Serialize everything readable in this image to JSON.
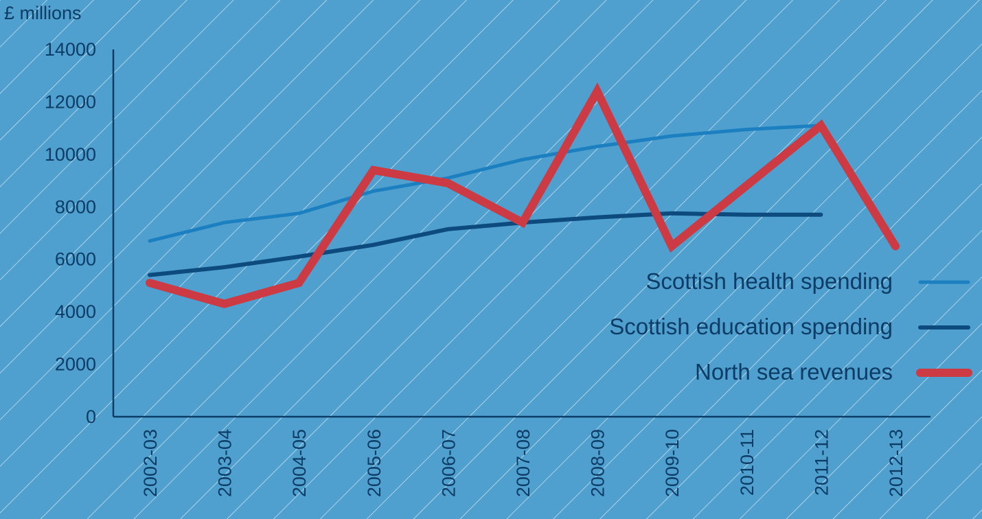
{
  "chart_data": {
    "type": "line",
    "ylabel": "£ millions",
    "ylim": [
      0,
      14000
    ],
    "yticks": [
      0,
      2000,
      4000,
      6000,
      8000,
      10000,
      12000,
      14000
    ],
    "categories": [
      "2002-03",
      "2003-04",
      "2004-05",
      "2005-06",
      "2006-07",
      "2007-08",
      "2008-09",
      "2009-10",
      "2010-11",
      "2011-12",
      "2012-13"
    ],
    "series": [
      {
        "name": "Scottish health spending",
        "color": "#1b7fc0",
        "values": [
          6700,
          7400,
          7750,
          8600,
          9100,
          9800,
          10300,
          10700,
          10950,
          11100,
          null
        ]
      },
      {
        "name": "Scottish education spending",
        "color": "#0d4a7e",
        "values": [
          5400,
          5700,
          6100,
          6550,
          7150,
          7400,
          7600,
          7750,
          7700,
          7700,
          null
        ]
      },
      {
        "name": "North sea revenues",
        "color": "#cc3a43",
        "values": [
          5100,
          4300,
          5100,
          9400,
          8900,
          7400,
          12400,
          6500,
          8800,
          11100,
          6500
        ]
      }
    ],
    "legend_position": "right",
    "grid": false,
    "background": "#4fa0cf",
    "text_color": "#0d3c66",
    "axis_color": "#0d3c66"
  }
}
